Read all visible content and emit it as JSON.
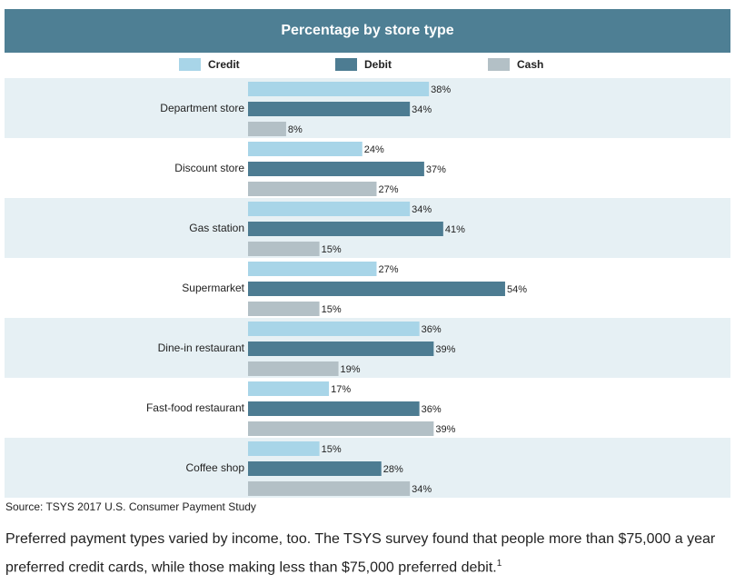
{
  "header": {
    "title": "Percentage by store type"
  },
  "colors": {
    "header_bg": "#4e7f94",
    "credit": "#a8d5e8",
    "debit": "#4d7c92",
    "cash": "#b3c0c6",
    "band": "#e6f0f4"
  },
  "chart_data": {
    "type": "bar",
    "orientation": "horizontal",
    "title": "Percentage by store type",
    "categories": [
      "Department store",
      "Discount store",
      "Gas station",
      "Supermarket",
      "Dine-in restaurant",
      "Fast-food restaurant",
      "Coffee shop"
    ],
    "series": [
      {
        "name": "Credit",
        "values": [
          38,
          24,
          34,
          27,
          36,
          17,
          15
        ]
      },
      {
        "name": "Debit",
        "values": [
          34,
          37,
          41,
          54,
          39,
          36,
          28
        ]
      },
      {
        "name": "Cash",
        "values": [
          8,
          27,
          15,
          15,
          19,
          39,
          34
        ]
      }
    ],
    "value_suffix": "%",
    "legend_position": "top",
    "xlim": [
      0,
      100
    ]
  },
  "source": "Source: TSYS 2017 U.S. Consumer Payment Study",
  "paragraph": {
    "text": "Preferred payment types varied by income, too. The TSYS survey found that people more than $75,000 a year preferred credit cards, while those making less than $75,000 preferred debit.",
    "footnote": "1"
  }
}
